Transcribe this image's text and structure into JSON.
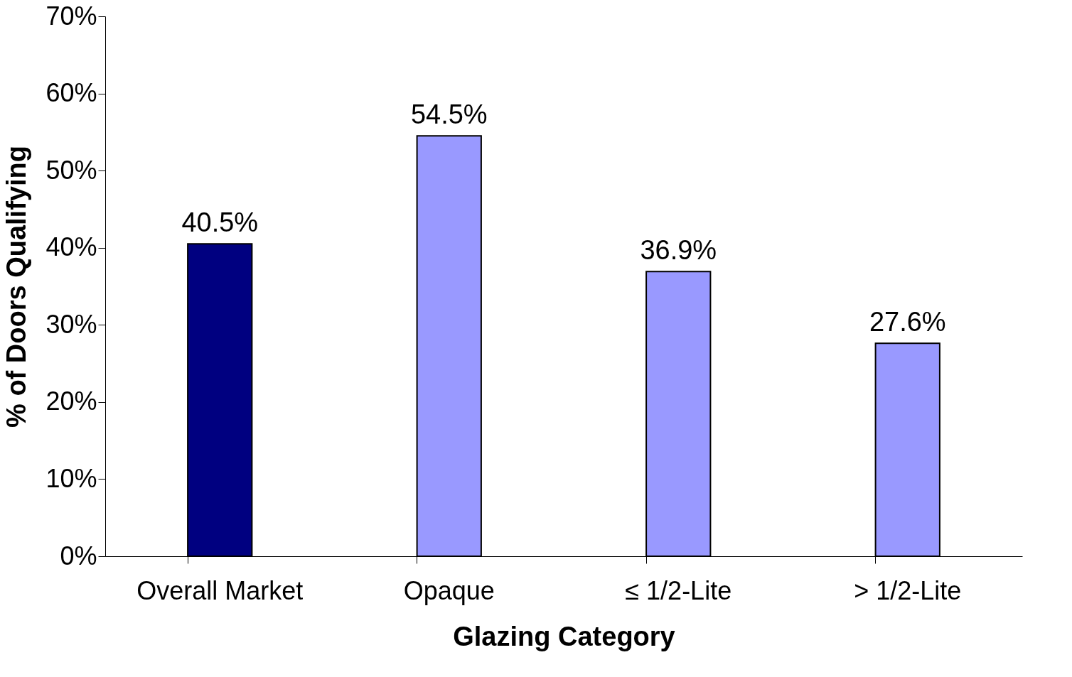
{
  "chart_data": {
    "type": "bar",
    "xlabel": "Glazing Category",
    "ylabel": "% of Doors Qualifying",
    "categories": [
      "Overall Market",
      "Opaque",
      "≤ 1/2-Lite",
      "> 1/2-Lite"
    ],
    "values": [
      40.5,
      54.5,
      36.9,
      27.6
    ],
    "colors": [
      "#000080",
      "#9999ff",
      "#9999ff",
      "#9999ff"
    ],
    "value_labels": [
      "40.5%",
      "54.5%",
      "36.9%",
      "27.6%"
    ],
    "ylim": [
      0,
      70
    ],
    "yticks": [
      {
        "value": 0,
        "label": "0%"
      },
      {
        "value": 10,
        "label": "10%"
      },
      {
        "value": 20,
        "label": "20%"
      },
      {
        "value": 30,
        "label": "30%"
      },
      {
        "value": 40,
        "label": "40%"
      },
      {
        "value": 50,
        "label": "50%"
      },
      {
        "value": 60,
        "label": "60%"
      },
      {
        "value": 70,
        "label": "70%"
      }
    ],
    "grid": false
  }
}
